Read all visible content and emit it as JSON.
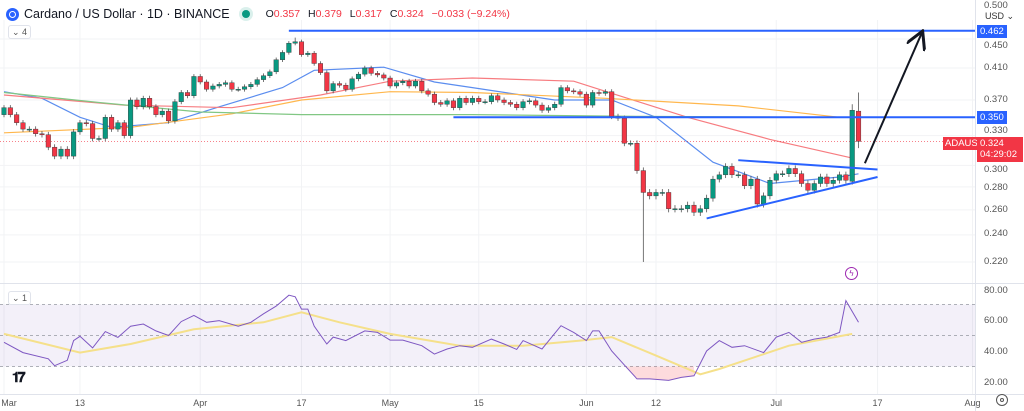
{
  "header": {
    "symbol_title": "Cardano / US Dollar · 1D · BINANCE",
    "ohlc": {
      "o_key": "O",
      "o": "0.357",
      "h_key": "H",
      "h": "0.379",
      "l_key": "L",
      "l": "0.317",
      "c_key": "C",
      "c": "0.324",
      "change": "−0.033 (−9.24%)"
    },
    "indicators_count": "4",
    "rsi_count": "1"
  },
  "price_axis": {
    "currency": "USD",
    "ticks": [
      "0.500",
      "0.450",
      "0.410",
      "0.370",
      "0.330",
      "0.300",
      "0.280",
      "0.260",
      "0.240",
      "0.220"
    ],
    "rsi_ticks": [
      "80.00",
      "60.00",
      "40.00",
      "20.00"
    ]
  },
  "labels": {
    "level_high": "0.462",
    "level_mid": "0.350",
    "symbol_tag": "ADAUSD",
    "last_price": "0.324",
    "countdown": "04:29:02"
  },
  "colors": {
    "up": "#089981",
    "down": "#f23645",
    "drawing": "#2962ff",
    "rsi": "#7e57c2",
    "rsi_ma": "#f5e08a",
    "ma_blue": "#5b8def",
    "ma_red": "#f77c80",
    "ma_orange": "#ffb74d",
    "ma_green": "#81c784"
  },
  "chart_data": {
    "type": "candlestick",
    "symbol": "ADAUSD",
    "interval": "1D",
    "y_scale": "log",
    "ylim": [
      0.215,
      0.505
    ],
    "x_ticks": [
      {
        "label": "Mar",
        "index": 0
      },
      {
        "label": "13",
        "index": 12
      },
      {
        "label": "Apr",
        "index": 31
      },
      {
        "label": "17",
        "index": 47
      },
      {
        "label": "May",
        "index": 61
      },
      {
        "label": "15",
        "index": 75
      },
      {
        "label": "Jun",
        "index": 92
      },
      {
        "label": "12",
        "index": 103
      },
      {
        "label": "Jul",
        "index": 122
      },
      {
        "label": "17",
        "index": 138
      },
      {
        "label": "Aug",
        "index": 153
      }
    ],
    "first_open": 0.353,
    "closes": [
      0.361,
      0.353,
      0.344,
      0.337,
      0.337,
      0.332,
      0.331,
      0.318,
      0.309,
      0.316,
      0.309,
      0.334,
      0.344,
      0.343,
      0.327,
      0.327,
      0.35,
      0.337,
      0.344,
      0.33,
      0.37,
      0.362,
      0.372,
      0.362,
      0.353,
      0.357,
      0.346,
      0.368,
      0.379,
      0.375,
      0.399,
      0.392,
      0.383,
      0.387,
      0.389,
      0.391,
      0.383,
      0.383,
      0.386,
      0.389,
      0.395,
      0.4,
      0.405,
      0.421,
      0.431,
      0.444,
      0.446,
      0.428,
      0.43,
      0.416,
      0.404,
      0.381,
      0.39,
      0.388,
      0.383,
      0.396,
      0.402,
      0.41,
      0.403,
      0.401,
      0.397,
      0.387,
      0.391,
      0.393,
      0.387,
      0.393,
      0.381,
      0.377,
      0.367,
      0.365,
      0.369,
      0.361,
      0.372,
      0.367,
      0.372,
      0.368,
      0.368,
      0.375,
      0.37,
      0.367,
      0.365,
      0.361,
      0.368,
      0.369,
      0.364,
      0.358,
      0.361,
      0.365,
      0.385,
      0.381,
      0.38,
      0.377,
      0.364,
      0.379,
      0.378,
      0.38,
      0.351,
      0.349,
      0.322,
      0.322,
      0.295,
      0.275,
      0.272,
      0.275,
      0.275,
      0.261,
      0.261,
      0.261,
      0.264,
      0.258,
      0.261,
      0.27,
      0.287,
      0.291,
      0.299,
      0.291,
      0.291,
      0.281,
      0.287,
      0.265,
      0.272,
      0.286,
      0.292,
      0.292,
      0.297,
      0.292,
      0.283,
      0.277,
      0.283,
      0.289,
      0.283,
      0.286,
      0.291,
      0.286,
      0.358,
      0.324
    ],
    "overrides": [
      {
        "index": 46,
        "high": 0.452
      },
      {
        "index": 101,
        "low": 0.22
      },
      {
        "index": 134,
        "open": 0.285,
        "high": 0.365
      },
      {
        "index": 135,
        "open": 0.357,
        "high": 0.379,
        "low": 0.317,
        "close": 0.324
      }
    ],
    "moving_averages": [
      {
        "color_key": "ma_blue",
        "points": [
          [
            0,
            0.38
          ],
          [
            6,
            0.372
          ],
          [
            12,
            0.35
          ],
          [
            17,
            0.339
          ],
          [
            26,
            0.344
          ],
          [
            34,
            0.362
          ],
          [
            44,
            0.385
          ],
          [
            49,
            0.407
          ],
          [
            60,
            0.411
          ],
          [
            68,
            0.392
          ],
          [
            74,
            0.385
          ],
          [
            87,
            0.37
          ],
          [
            96,
            0.37
          ],
          [
            103,
            0.35
          ],
          [
            112,
            0.303
          ],
          [
            121,
            0.283
          ],
          [
            132,
            0.289
          ],
          [
            135,
            0.292
          ]
        ]
      },
      {
        "color_key": "ma_red",
        "points": [
          [
            0,
            0.376
          ],
          [
            19,
            0.364
          ],
          [
            36,
            0.361
          ],
          [
            50,
            0.376
          ],
          [
            61,
            0.393
          ],
          [
            74,
            0.397
          ],
          [
            90,
            0.393
          ],
          [
            96,
            0.378
          ],
          [
            108,
            0.35
          ],
          [
            121,
            0.326
          ],
          [
            134,
            0.307
          ]
        ]
      },
      {
        "color_key": "ma_orange",
        "points": [
          [
            0,
            0.333
          ],
          [
            20,
            0.339
          ],
          [
            36,
            0.354
          ],
          [
            47,
            0.37
          ],
          [
            61,
            0.38
          ],
          [
            74,
            0.379
          ],
          [
            95,
            0.372
          ],
          [
            116,
            0.363
          ],
          [
            132,
            0.35
          ]
        ]
      },
      {
        "color_key": "ma_green",
        "points": [
          [
            0,
            0.379
          ],
          [
            15,
            0.367
          ],
          [
            31,
            0.356
          ],
          [
            47,
            0.353
          ],
          [
            74,
            0.353
          ],
          [
            100,
            0.351
          ],
          [
            134,
            0.35
          ]
        ]
      }
    ],
    "drawings": {
      "horizontal_levels": [
        {
          "price": 0.462,
          "from_index": 45
        },
        {
          "price": 0.35,
          "from_index": 71
        }
      ],
      "triangle_upper": [
        [
          116,
          0.305
        ],
        [
          138,
          0.296
        ]
      ],
      "triangle_lower": [
        [
          111,
          0.253
        ],
        [
          138,
          0.289
        ]
      ],
      "arrow": [
        [
          136,
          0.302
        ],
        [
          145,
          0.459
        ]
      ],
      "last_price_line": 0.324
    },
    "rsi": {
      "ylim": [
        15,
        85
      ],
      "bands": [
        70,
        50,
        30
      ],
      "points": [
        [
          0,
          45.6
        ],
        [
          3,
          39
        ],
        [
          7,
          35
        ],
        [
          8,
          30.5
        ],
        [
          10,
          34
        ],
        [
          11,
          46.7
        ],
        [
          12,
          49.5
        ],
        [
          14,
          42
        ],
        [
          16,
          52.5
        ],
        [
          18,
          48.8
        ],
        [
          20,
          56
        ],
        [
          22,
          57.4
        ],
        [
          24,
          53
        ],
        [
          26,
          50
        ],
        [
          28,
          59
        ],
        [
          30,
          63
        ],
        [
          32,
          58.5
        ],
        [
          34,
          59.6
        ],
        [
          37,
          56
        ],
        [
          39,
          58.5
        ],
        [
          41,
          64
        ],
        [
          43,
          69
        ],
        [
          45,
          76
        ],
        [
          46,
          75
        ],
        [
          47,
          67
        ],
        [
          48,
          67
        ],
        [
          49,
          56
        ],
        [
          51,
          44.5
        ],
        [
          52,
          49
        ],
        [
          54,
          46.7
        ],
        [
          57,
          53
        ],
        [
          59,
          52
        ],
        [
          61,
          47
        ],
        [
          63,
          47
        ],
        [
          66,
          43.4
        ],
        [
          68,
          38
        ],
        [
          70,
          41.3
        ],
        [
          72,
          43.4
        ],
        [
          74,
          42.4
        ],
        [
          77,
          47.7
        ],
        [
          79,
          44.5
        ],
        [
          81,
          41
        ],
        [
          82,
          46.7
        ],
        [
          85,
          41.3
        ],
        [
          88,
          56.3
        ],
        [
          90,
          52
        ],
        [
          92,
          46.7
        ],
        [
          93,
          53
        ],
        [
          94,
          53
        ],
        [
          96,
          40
        ],
        [
          98,
          31
        ],
        [
          100,
          22
        ],
        [
          102,
          22
        ],
        [
          105,
          21
        ],
        [
          107,
          23
        ],
        [
          109,
          24
        ],
        [
          111,
          40
        ],
        [
          113,
          46.7
        ],
        [
          115,
          42.4
        ],
        [
          117,
          43.4
        ],
        [
          120,
          39
        ],
        [
          122,
          49
        ],
        [
          124,
          52
        ],
        [
          126,
          45.6
        ],
        [
          128,
          47.7
        ],
        [
          130,
          49
        ],
        [
          132,
          52
        ],
        [
          133,
          72.5
        ],
        [
          135,
          58.5
        ]
      ],
      "ma_points": [
        [
          0,
          51
        ],
        [
          12,
          39
        ],
        [
          20,
          44.5
        ],
        [
          30,
          54
        ],
        [
          41,
          58.5
        ],
        [
          47,
          65
        ],
        [
          53,
          58.5
        ],
        [
          61,
          51
        ],
        [
          72,
          43.4
        ],
        [
          82,
          43.4
        ],
        [
          91,
          46.7
        ],
        [
          96,
          49
        ],
        [
          103,
          37
        ],
        [
          110,
          25
        ],
        [
          113,
          28.4
        ],
        [
          124,
          43.4
        ],
        [
          134,
          51
        ]
      ]
    }
  }
}
